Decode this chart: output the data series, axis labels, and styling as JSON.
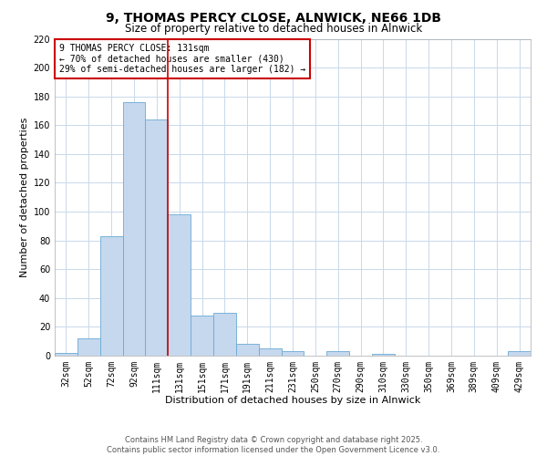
{
  "title": "9, THOMAS PERCY CLOSE, ALNWICK, NE66 1DB",
  "subtitle": "Size of property relative to detached houses in Alnwick",
  "xlabel": "Distribution of detached houses by size in Alnwick",
  "ylabel": "Number of detached properties",
  "bar_labels": [
    "32sqm",
    "52sqm",
    "72sqm",
    "92sqm",
    "111sqm",
    "131sqm",
    "151sqm",
    "171sqm",
    "191sqm",
    "211sqm",
    "231sqm",
    "250sqm",
    "270sqm",
    "290sqm",
    "310sqm",
    "330sqm",
    "350sqm",
    "369sqm",
    "389sqm",
    "409sqm",
    "429sqm"
  ],
  "bar_values": [
    2,
    12,
    83,
    176,
    164,
    98,
    28,
    30,
    8,
    5,
    3,
    0,
    3,
    0,
    1,
    0,
    0,
    0,
    0,
    0,
    3
  ],
  "bar_color": "#c5d8ee",
  "bar_edge_color": "#6aaad4",
  "vline_x_index": 5,
  "vline_color": "#cc0000",
  "ylim": [
    0,
    220
  ],
  "yticks": [
    0,
    20,
    40,
    60,
    80,
    100,
    120,
    140,
    160,
    180,
    200,
    220
  ],
  "annotation_title": "9 THOMAS PERCY CLOSE: 131sqm",
  "annotation_line1": "← 70% of detached houses are smaller (430)",
  "annotation_line2": "29% of semi-detached houses are larger (182) →",
  "annotation_box_color": "#ffffff",
  "annotation_box_edge": "#cc0000",
  "footer_line1": "Contains HM Land Registry data © Crown copyright and database right 2025.",
  "footer_line2": "Contains public sector information licensed under the Open Government Licence v3.0.",
  "background_color": "#ffffff",
  "grid_color": "#c8d8ea",
  "title_fontsize": 10,
  "subtitle_fontsize": 8.5,
  "axis_label_fontsize": 8,
  "tick_fontsize": 7,
  "annotation_fontsize": 7,
  "footer_fontsize": 6
}
